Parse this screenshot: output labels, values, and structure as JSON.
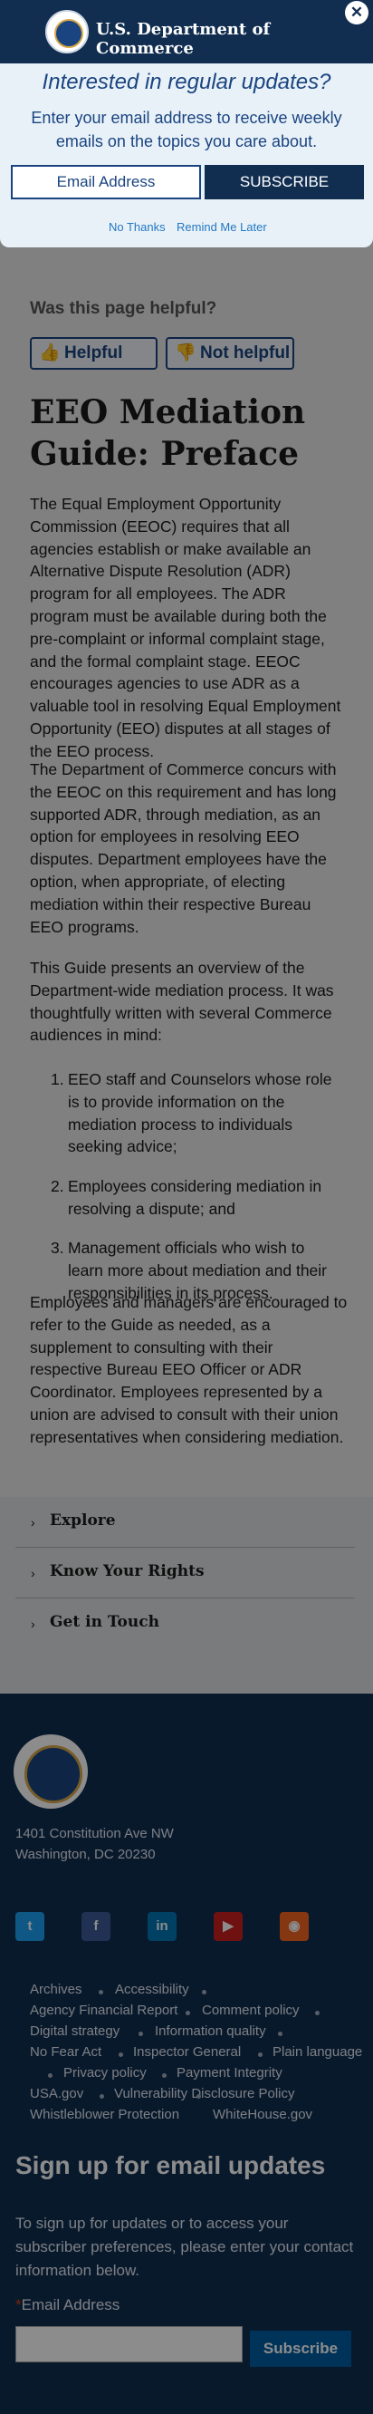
{
  "header": {
    "title": "U.S. Department of Commerce",
    "close_glyph": "✕"
  },
  "modal": {
    "heading": "Interested in regular updates?",
    "text": "Enter your email address to receive weekly emails on the topics you care about.",
    "email_placeholder": "Email Address",
    "subscribe_label": "SUBSCRIBE",
    "no_thanks": "No Thanks",
    "remind": "Remind Me Later"
  },
  "feedback": {
    "question": "Was this page helpful?",
    "helpful": "Helpful",
    "not_helpful": "Not helpful"
  },
  "page": {
    "title": "EEO Mediation Guide: Preface",
    "paragraphs": [
      "The Equal Employment Opportunity Commission (EEOC) requires that all agencies establish or make available an Alternative Dispute Resolution (ADR) program for all employees. The ADR program must be available during both the pre-complaint or informal complaint stage, and the formal complaint stage. EEOC encourages agencies to use ADR as a valuable tool in resolving Equal Employment Opportunity (EEO) disputes at all stages of the EEO process.",
      "The Department of Commerce concurs with the EEOC on this requirement and has long supported ADR, through mediation, as an option for employees in resolving EEO disputes. Department employees have the option, when appropriate, of electing mediation within their respective Bureau EEO programs.",
      "This Guide presents an overview of the Department-wide mediation process. It was thoughtfully written with several Commerce audiences in mind:",
      "Employees and managers are encouraged to refer to the Guide as needed, as a supplement to consulting with their respective Bureau EEO Officer or ADR Coordinator. Employees represented by a union are advised to consult with their union representatives when considering mediation."
    ],
    "list": [
      "EEO staff and Counselors whose role is to provide information on the mediation process to individuals seeking advice;",
      "Employees considering mediation in resolving a dispute; and",
      "Management officials who wish to learn more about mediation and their responsibilities in its process."
    ]
  },
  "accordion": [
    "Explore",
    "Know Your Rights",
    "Get in Touch"
  ],
  "footer": {
    "address_line1": "1401 Constitution Ave NW",
    "address_line2": "Washington, DC 20230",
    "social": [
      {
        "name": "twitter-icon",
        "glyph": "t",
        "color": "#1da1f2"
      },
      {
        "name": "facebook-icon",
        "glyph": "f",
        "color": "#3b5998"
      },
      {
        "name": "linkedin-icon",
        "glyph": "in",
        "color": "#0077b5"
      },
      {
        "name": "youtube-icon",
        "glyph": "▶",
        "color": "#cd201f"
      },
      {
        "name": "rss-icon",
        "glyph": "◉",
        "color": "#f26522"
      }
    ],
    "links": [
      "Archives",
      "Accessibility",
      "Agency Financial Report",
      "Comment policy",
      "Digital strategy",
      "Information quality",
      "No Fear Act",
      "Inspector General",
      "Plain language",
      "Privacy policy",
      "Payment Integrity",
      "USA.gov",
      "Vulnerability Disclosure Policy",
      "Whistleblower Protection",
      "WhiteHouse.gov"
    ],
    "signup_heading": "Sign up for email updates",
    "signup_text": "To sign up for updates or to access your subscriber preferences, please enter your contact information below.",
    "required_mark": "*",
    "email_label": "Email Address",
    "subscribe_label": "Subscribe"
  }
}
